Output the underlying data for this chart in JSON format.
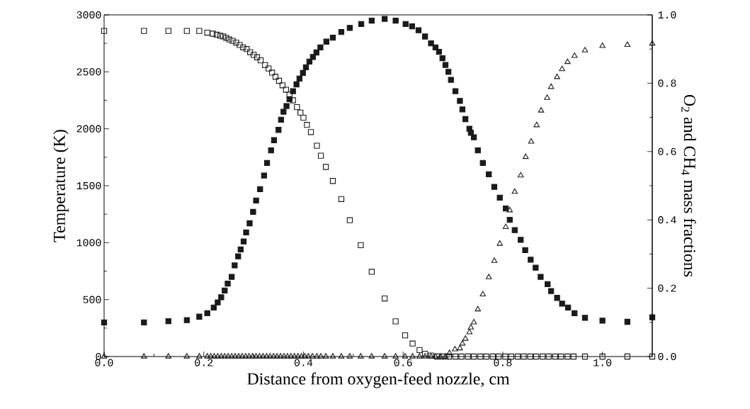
{
  "chart_data": {
    "type": "scatter",
    "xlabel": "Distance from oxygen-feed nozzle, cm",
    "ylabel": "Temperature (K)",
    "y2label": "O$_{2}$ and CH$_{4}$ mass fractions",
    "xlim": [
      0,
      1.1
    ],
    "xticks": [
      {
        "value": 0,
        "label": "0.0"
      },
      {
        "value": 0.2,
        "label": "0.2"
      },
      {
        "value": 0.4,
        "label": "0.4"
      },
      {
        "value": 0.6,
        "label": "0.6"
      },
      {
        "value": 0.8,
        "label": "0.8"
      },
      {
        "value": 1.0,
        "label": "1.0"
      }
    ],
    "ylim": [
      0,
      3000
    ],
    "yticks": [
      0,
      500,
      1000,
      1500,
      2000,
      2500,
      3000
    ],
    "y2lim": [
      0,
      1
    ],
    "y2ticks": [
      {
        "value": 0,
        "label": "0.0"
      },
      {
        "value": 0.2,
        "label": "0.2"
      },
      {
        "value": 0.4,
        "label": "0.4"
      },
      {
        "value": 0.6,
        "label": "0.6"
      },
      {
        "value": 0.8,
        "label": "0.8"
      },
      {
        "value": 1.0,
        "label": "1.0"
      }
    ],
    "grid": false,
    "series": [
      {
        "color": "#1a1a1a",
        "marker": "square",
        "axis": "y",
        "x": [
          0,
          0.08,
          0.129,
          0.166,
          0.191,
          0.207,
          0.22,
          0.228,
          0.235,
          0.242,
          0.248,
          0.256,
          0.262,
          0.269,
          0.274,
          0.28,
          0.285,
          0.292,
          0.299,
          0.305,
          0.313,
          0.321,
          0.327,
          0.335,
          0.341,
          0.35,
          0.355,
          0.36,
          0.366,
          0.372,
          0.379,
          0.386,
          0.392,
          0.399,
          0.405,
          0.412,
          0.419,
          0.426,
          0.434,
          0.446,
          0.459,
          0.476,
          0.493,
          0.516,
          0.537,
          0.563,
          0.585,
          0.605,
          0.618,
          0.631,
          0.644,
          0.656,
          0.665,
          0.672,
          0.679,
          0.685,
          0.691,
          0.696,
          0.705,
          0.714,
          0.719,
          0.725,
          0.733,
          0.736,
          0.742,
          0.75,
          0.76,
          0.772,
          0.783,
          0.794,
          0.806,
          0.814,
          0.824,
          0.836,
          0.845,
          0.856,
          0.866,
          0.876,
          0.89,
          0.897,
          0.909,
          0.919,
          0.931,
          0.944,
          0.965,
          1.0,
          1.05,
          1.1
        ],
        "values": [
          300,
          300,
          310,
          320,
          350,
          380,
          430,
          475,
          520,
          580,
          640,
          700,
          800,
          880,
          940,
          1010,
          1090,
          1170,
          1270,
          1370,
          1470,
          1590,
          1700,
          1810,
          1900,
          1990,
          2080,
          2150,
          2200,
          2260,
          2330,
          2390,
          2440,
          2490,
          2540,
          2590,
          2630,
          2670,
          2715,
          2765,
          2800,
          2850,
          2885,
          2920,
          2950,
          2965,
          2950,
          2920,
          2900,
          2865,
          2810,
          2750,
          2715,
          2675,
          2620,
          2560,
          2500,
          2430,
          2330,
          2245,
          2170,
          2085,
          2000,
          1965,
          1925,
          1810,
          1700,
          1600,
          1490,
          1395,
          1300,
          1200,
          1110,
          1025,
          935,
          850,
          780,
          700,
          635,
          575,
          515,
          465,
          430,
          380,
          340,
          315,
          305,
          345
        ]
      },
      {
        "color": "#1a1a1a",
        "marker": "square",
        "axis": "y2",
        "x": [
          0,
          0.08,
          0.129,
          0.166,
          0.191,
          0.207,
          0.218,
          0.226,
          0.233,
          0.239,
          0.245,
          0.251,
          0.258,
          0.265,
          0.272,
          0.279,
          0.286,
          0.293,
          0.3,
          0.307,
          0.314,
          0.323,
          0.33,
          0.337,
          0.344,
          0.351,
          0.358,
          0.365,
          0.372,
          0.379,
          0.387,
          0.394,
          0.4,
          0.407,
          0.415,
          0.427,
          0.435,
          0.445,
          0.459,
          0.476,
          0.493,
          0.515,
          0.537,
          0.563,
          0.585,
          0.604,
          0.619,
          0.633,
          0.644,
          0.656,
          0.668,
          0.68,
          0.692,
          0.705,
          0.717,
          0.73,
          0.742,
          0.755,
          0.767,
          0.78,
          0.792,
          0.805,
          0.817,
          0.83,
          0.842,
          0.855,
          0.867,
          0.88,
          0.892,
          0.905,
          0.917,
          0.93,
          0.942,
          0.965,
          1.0,
          1.05,
          1.1
        ],
        "values": [
          0.953,
          0.953,
          0.953,
          0.953,
          0.953,
          0.948,
          0.945,
          0.942,
          0.939,
          0.937,
          0.933,
          0.928,
          0.924,
          0.919,
          0.912,
          0.905,
          0.9,
          0.891,
          0.883,
          0.876,
          0.867,
          0.853,
          0.843,
          0.831,
          0.819,
          0.807,
          0.794,
          0.781,
          0.767,
          0.75,
          0.73,
          0.714,
          0.699,
          0.678,
          0.657,
          0.617,
          0.588,
          0.555,
          0.514,
          0.461,
          0.399,
          0.326,
          0.248,
          0.17,
          0.103,
          0.062,
          0.038,
          0.019,
          0.008,
          0.003,
          0,
          0,
          0,
          0,
          0,
          0,
          0,
          0,
          0,
          0,
          0,
          0,
          0,
          0,
          0,
          0,
          0,
          0,
          0,
          0,
          0,
          0,
          0,
          0,
          0,
          0,
          0
        ]
      },
      {
        "color": "#1a1a1a",
        "marker": "triangle",
        "axis": "y2",
        "x": [
          0,
          0.08,
          0.129,
          0.166,
          0.191,
          0.207,
          0.214,
          0.221,
          0.228,
          0.235,
          0.242,
          0.249,
          0.256,
          0.263,
          0.27,
          0.277,
          0.284,
          0.291,
          0.298,
          0.305,
          0.312,
          0.319,
          0.326,
          0.333,
          0.34,
          0.347,
          0.354,
          0.361,
          0.368,
          0.375,
          0.382,
          0.389,
          0.396,
          0.403,
          0.41,
          0.418,
          0.427,
          0.435,
          0.445,
          0.459,
          0.476,
          0.493,
          0.515,
          0.537,
          0.563,
          0.585,
          0.604,
          0.619,
          0.633,
          0.644,
          0.656,
          0.665,
          0.675,
          0.685,
          0.693,
          0.704,
          0.714,
          0.719,
          0.725,
          0.733,
          0.736,
          0.742,
          0.75,
          0.76,
          0.772,
          0.783,
          0.794,
          0.806,
          0.814,
          0.824,
          0.836,
          0.846,
          0.857,
          0.868,
          0.877,
          0.889,
          0.897,
          0.909,
          0.919,
          0.93,
          0.944,
          0.965,
          1.0,
          1.05,
          1.1
        ],
        "values": [
          0,
          0,
          0,
          0,
          0,
          0,
          0,
          0,
          0,
          0,
          0,
          0,
          0,
          0,
          0,
          0,
          0,
          0,
          0,
          0,
          0,
          0,
          0,
          0,
          0,
          0,
          0,
          0,
          0,
          0,
          0,
          0,
          0,
          0,
          0,
          0,
          0,
          0,
          0,
          0,
          0,
          0,
          0,
          0,
          0,
          0,
          0,
          0,
          0,
          0,
          0,
          0,
          0,
          0,
          0.01,
          0.021,
          0.024,
          0.038,
          0.052,
          0.071,
          0.085,
          0.1,
          0.138,
          0.182,
          0.232,
          0.28,
          0.33,
          0.379,
          0.428,
          0.482,
          0.53,
          0.584,
          0.629,
          0.677,
          0.72,
          0.757,
          0.789,
          0.818,
          0.841,
          0.862,
          0.88,
          0.896,
          0.909,
          0.912,
          0.916
        ]
      }
    ]
  }
}
